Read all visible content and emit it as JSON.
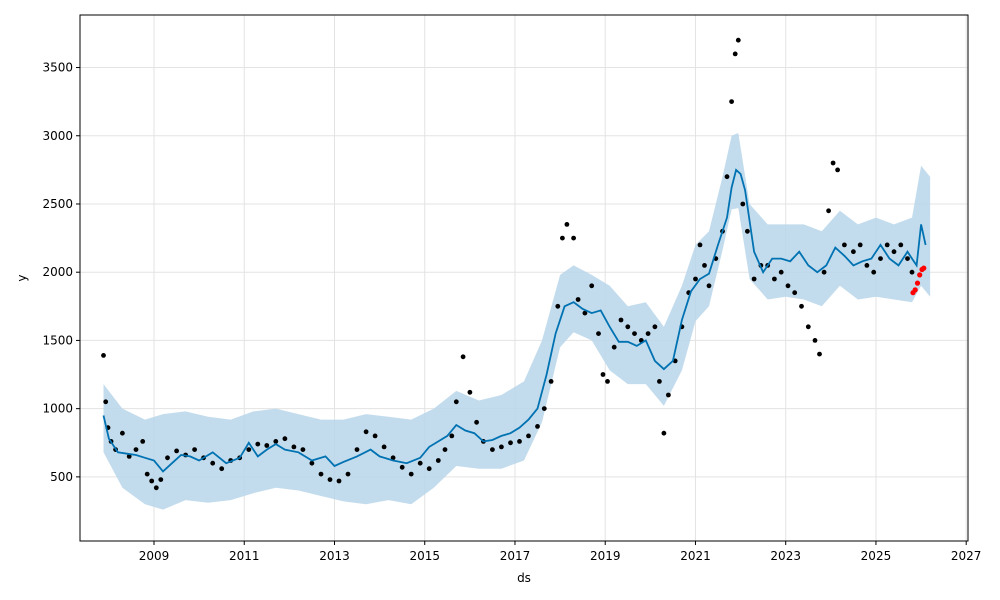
{
  "chart_data": {
    "type": "line",
    "title": "",
    "xlabel": "ds",
    "ylabel": "y",
    "x_tick_labels": [
      "2009",
      "2011",
      "2013",
      "2015",
      "2017",
      "2019",
      "2021",
      "2023",
      "2025",
      "2027"
    ],
    "y_tick_labels": [
      "500",
      "1000",
      "1500",
      "2000",
      "2500",
      "3000",
      "3500"
    ],
    "xlim": [
      2007.36,
      2027.04
    ],
    "ylim": [
      30,
      3885
    ],
    "grid": true,
    "colors": {
      "observed": "#000000",
      "forecast_line": "#0072B2",
      "uncertainty_band": "#b9d6ea",
      "future_actual": "#ff0000"
    },
    "series": [
      {
        "kind": "observed",
        "x": [
          2007.88,
          2007.93,
          2007.98,
          2008.05,
          2008.15,
          2008.3,
          2008.45,
          2008.6,
          2008.75,
          2008.85,
          2008.95,
          2009.05,
          2009.15,
          2009.3,
          2009.5,
          2009.7,
          2009.9,
          2010.1,
          2010.3,
          2010.5,
          2010.7,
          2010.9,
          2011.1,
          2011.3,
          2011.5,
          2011.7,
          2011.9,
          2012.1,
          2012.3,
          2012.5,
          2012.7,
          2012.9,
          2013.1,
          2013.3,
          2013.5,
          2013.7,
          2013.9,
          2014.1,
          2014.3,
          2014.5,
          2014.7,
          2014.9,
          2015.1,
          2015.3,
          2015.45,
          2015.6,
          2015.7,
          2015.85,
          2016.0,
          2016.15,
          2016.3,
          2016.5,
          2016.7,
          2016.9,
          2017.1,
          2017.3,
          2017.5,
          2017.65,
          2017.8,
          2017.95,
          2018.05,
          2018.15,
          2018.3,
          2018.4,
          2018.55,
          2018.7,
          2018.85,
          2018.95,
          2019.05,
          2019.2,
          2019.35,
          2019.5,
          2019.65,
          2019.8,
          2019.95,
          2020.1,
          2020.2,
          2020.3,
          2020.4,
          2020.55,
          2020.7,
          2020.85,
          2021.0,
          2021.1,
          2021.2,
          2021.3,
          2021.45,
          2021.6,
          2021.7,
          2021.8,
          2021.88,
          2021.95,
          2022.05,
          2022.15,
          2022.3,
          2022.45,
          2022.6,
          2022.75,
          2022.9,
          2023.05,
          2023.2,
          2023.35,
          2023.5,
          2023.65,
          2023.75,
          2023.85,
          2023.95,
          2024.05,
          2024.15,
          2024.3,
          2024.5,
          2024.65,
          2024.8,
          2024.95,
          2025.1,
          2025.25,
          2025.4,
          2025.55,
          2025.7,
          2025.8
        ],
        "y": [
          1390,
          1050,
          860,
          760,
          700,
          820,
          650,
          700,
          760,
          520,
          470,
          420,
          480,
          640,
          690,
          660,
          700,
          640,
          600,
          560,
          620,
          640,
          700,
          740,
          730,
          760,
          780,
          720,
          700,
          600,
          520,
          480,
          470,
          520,
          700,
          830,
          800,
          720,
          640,
          570,
          520,
          600,
          560,
          620,
          700,
          800,
          1050,
          1380,
          1120,
          900,
          760,
          700,
          720,
          750,
          760,
          800,
          870,
          1000,
          1200,
          1750,
          2250,
          2350,
          2250,
          1800,
          1700,
          1900,
          1550,
          1250,
          1200,
          1450,
          1650,
          1600,
          1550,
          1500,
          1550,
          1600,
          1200,
          820,
          1100,
          1350,
          1600,
          1850,
          1950,
          2200,
          2050,
          1900,
          2100,
          2300,
          2700,
          3250,
          3600,
          3700,
          2500,
          2300,
          1950,
          2050,
          2050,
          1950,
          2000,
          1900,
          1850,
          1750,
          1600,
          1500,
          1400,
          2000,
          2450,
          2800,
          2750,
          2200,
          2150,
          2200,
          2050,
          2000,
          2100,
          2200,
          2150,
          2200,
          2100,
          2000
        ]
      },
      {
        "kind": "forecast",
        "x": [
          2007.88,
          2008.0,
          2008.2,
          2008.4,
          2008.6,
          2008.8,
          2009.0,
          2009.2,
          2009.4,
          2009.6,
          2009.8,
          2010.0,
          2010.3,
          2010.6,
          2010.9,
          2011.1,
          2011.3,
          2011.5,
          2011.7,
          2011.9,
          2012.2,
          2012.5,
          2012.8,
          2013.0,
          2013.2,
          2013.5,
          2013.8,
          2014.0,
          2014.3,
          2014.6,
          2014.9,
          2015.1,
          2015.3,
          2015.5,
          2015.7,
          2015.9,
          2016.1,
          2016.3,
          2016.5,
          2016.7,
          2016.9,
          2017.1,
          2017.3,
          2017.5,
          2017.7,
          2017.9,
          2018.1,
          2018.3,
          2018.5,
          2018.7,
          2018.9,
          2019.1,
          2019.3,
          2019.5,
          2019.7,
          2019.9,
          2020.1,
          2020.3,
          2020.5,
          2020.7,
          2020.9,
          2021.1,
          2021.3,
          2021.5,
          2021.7,
          2021.8,
          2021.9,
          2022.0,
          2022.1,
          2022.3,
          2022.5,
          2022.7,
          2022.9,
          2023.1,
          2023.3,
          2023.5,
          2023.7,
          2023.9,
          2024.1,
          2024.3,
          2024.5,
          2024.7,
          2024.9,
          2025.1,
          2025.3,
          2025.5,
          2025.7,
          2025.8,
          2025.9,
          2026.0,
          2026.1
        ],
        "y": [
          950,
          780,
          680,
          670,
          660,
          640,
          620,
          540,
          600,
          660,
          650,
          620,
          680,
          600,
          640,
          750,
          650,
          700,
          740,
          700,
          680,
          620,
          650,
          580,
          610,
          650,
          700,
          650,
          620,
          600,
          640,
          720,
          760,
          800,
          880,
          840,
          820,
          760,
          770,
          800,
          820,
          860,
          920,
          1000,
          1250,
          1550,
          1750,
          1780,
          1730,
          1700,
          1720,
          1600,
          1490,
          1490,
          1460,
          1500,
          1350,
          1290,
          1350,
          1650,
          1860,
          1950,
          1990,
          2200,
          2400,
          2620,
          2750,
          2720,
          2600,
          2150,
          2000,
          2100,
          2100,
          2080,
          2150,
          2050,
          2000,
          2050,
          2180,
          2120,
          2050,
          2080,
          2100,
          2200,
          2100,
          2050,
          2150,
          2100,
          2050,
          2350,
          2200
        ]
      },
      {
        "kind": "uncertainty_upper",
        "x": [
          2007.88,
          2008.3,
          2008.8,
          2009.2,
          2009.7,
          2010.2,
          2010.7,
          2011.2,
          2011.7,
          2012.2,
          2012.7,
          2013.2,
          2013.7,
          2014.2,
          2014.7,
          2015.2,
          2015.7,
          2016.2,
          2016.7,
          2017.2,
          2017.6,
          2018.0,
          2018.3,
          2018.7,
          2019.1,
          2019.5,
          2019.9,
          2020.3,
          2020.7,
          2021.0,
          2021.3,
          2021.6,
          2021.8,
          2021.95,
          2022.2,
          2022.6,
          2023.0,
          2023.4,
          2023.8,
          2024.2,
          2024.6,
          2025.0,
          2025.4,
          2025.8,
          2026.0,
          2026.2
        ],
        "y": [
          1180,
          1000,
          920,
          960,
          980,
          940,
          920,
          980,
          1000,
          960,
          920,
          920,
          960,
          940,
          920,
          1000,
          1130,
          1060,
          1100,
          1200,
          1500,
          1980,
          2050,
          1980,
          1900,
          1750,
          1780,
          1600,
          1900,
          2200,
          2300,
          2700,
          3000,
          3020,
          2500,
          2350,
          2350,
          2350,
          2300,
          2450,
          2350,
          2400,
          2350,
          2400,
          2780,
          2700
        ]
      },
      {
        "kind": "uncertainty_lower",
        "x": [
          2007.88,
          2008.3,
          2008.8,
          2009.2,
          2009.7,
          2010.2,
          2010.7,
          2011.2,
          2011.7,
          2012.2,
          2012.7,
          2013.2,
          2013.7,
          2014.2,
          2014.7,
          2015.2,
          2015.7,
          2016.2,
          2016.7,
          2017.2,
          2017.6,
          2018.0,
          2018.3,
          2018.7,
          2019.1,
          2019.5,
          2019.9,
          2020.3,
          2020.7,
          2021.0,
          2021.3,
          2021.6,
          2021.8,
          2021.95,
          2022.2,
          2022.6,
          2023.0,
          2023.4,
          2023.8,
          2024.2,
          2024.6,
          2025.0,
          2025.4,
          2025.8,
          2026.0,
          2026.2
        ],
        "y": [
          680,
          420,
          300,
          260,
          330,
          310,
          330,
          380,
          420,
          400,
          360,
          320,
          300,
          330,
          300,
          420,
          580,
          560,
          560,
          620,
          900,
          1450,
          1560,
          1500,
          1280,
          1180,
          1180,
          1020,
          1280,
          1640,
          1750,
          2160,
          2460,
          2470,
          1950,
          1800,
          1820,
          1800,
          1750,
          1900,
          1800,
          1820,
          1800,
          1780,
          1900,
          1820
        ]
      },
      {
        "kind": "future_actual",
        "x": [
          2025.82,
          2025.87,
          2025.92,
          2025.97,
          2026.02,
          2026.06
        ],
        "y": [
          1850,
          1870,
          1920,
          1980,
          2020,
          2030
        ]
      }
    ]
  }
}
